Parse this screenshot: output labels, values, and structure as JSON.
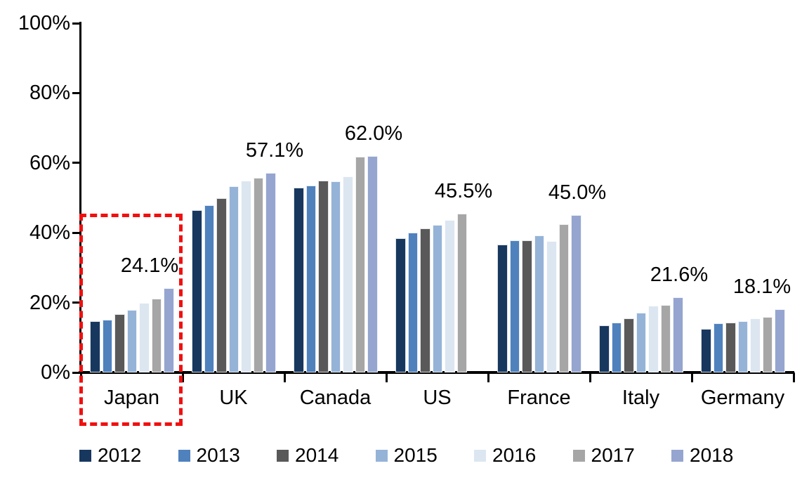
{
  "chart_data": {
    "type": "bar",
    "title": "",
    "categories": [
      "Japan",
      "UK",
      "Canada",
      "US",
      "France",
      "Italy",
      "Germany"
    ],
    "series": [
      {
        "name": "2012",
        "color": "#17375E",
        "values": [
          14.7,
          46.5,
          52.9,
          38.4,
          36.6,
          13.5,
          12.5
        ]
      },
      {
        "name": "2013",
        "color": "#4F81BD",
        "values": [
          15.1,
          47.9,
          53.5,
          40.0,
          37.8,
          14.3,
          14.1
        ]
      },
      {
        "name": "2014",
        "color": "#595959",
        "values": [
          16.6,
          50.0,
          54.9,
          41.2,
          37.8,
          15.5,
          14.3
        ]
      },
      {
        "name": "2015",
        "color": "#95B3D7",
        "values": [
          18.0,
          53.4,
          54.7,
          42.3,
          39.3,
          17.1,
          14.7
        ]
      },
      {
        "name": "2016",
        "color": "#DCE6F1",
        "values": [
          19.9,
          54.9,
          56.1,
          43.6,
          37.6,
          19.1,
          15.5
        ]
      },
      {
        "name": "2017",
        "color": "#A6A6A6",
        "values": [
          21.1,
          55.8,
          61.8,
          45.5,
          42.5,
          19.3,
          15.9
        ]
      },
      {
        "name": "2018",
        "color": "#95A5CF",
        "values": [
          24.1,
          57.1,
          62.0,
          null,
          45.0,
          21.6,
          18.1
        ]
      }
    ],
    "value_labels": [
      "24.1%",
      "57.1%",
      "62.0%",
      "45.5%",
      "45.0%",
      "21.6%",
      "18.1%"
    ],
    "y_ticks": [
      "100%",
      "80%",
      "60%",
      "40%",
      "20%",
      "0%"
    ],
    "ylim": [
      0,
      100
    ],
    "grid": false,
    "legend_position": "bottom",
    "legend_entries": [
      "2012",
      "2013",
      "2014",
      "2015",
      "2016",
      "2017",
      "2018"
    ],
    "highlight": {
      "category": "Japan",
      "style": "red-dashed-rectangle",
      "color": "#F01010"
    },
    "axis_color": "#000000",
    "value_label_dx": [
      98,
      131,
      127,
      110,
      127,
      127,
      100
    ]
  }
}
